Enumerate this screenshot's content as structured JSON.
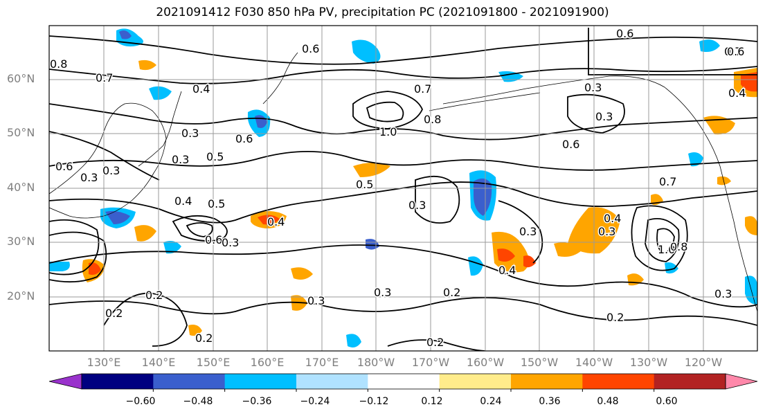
{
  "title": "2021091412 F030 850 hPa PV, precipitation PC (2021091800 - 2021091900)",
  "map": {
    "region": "North Pacific",
    "lat_labels": [
      "60°N",
      "50°N",
      "40°N",
      "30°N",
      "20°N"
    ],
    "lon_labels": [
      "130°E",
      "140°E",
      "150°E",
      "160°E",
      "170°E",
      "180°W",
      "170°W",
      "160°W",
      "150°W",
      "140°W",
      "130°W",
      "120°W"
    ],
    "contour_labels": [
      "0.8",
      "0.7",
      "0.6",
      "0.4",
      "0.3",
      "0.5",
      "0.6",
      "0.3",
      "0.4",
      "0.5",
      "0.3",
      "0.4",
      "0.6",
      "0.3",
      "0.2",
      "0.2",
      "0.2",
      "0.3",
      "0.7",
      "1.0",
      "0.8",
      "0.5",
      "0.3",
      "0.3",
      "0.4",
      "0.3",
      "0.2",
      "0.3",
      "0.3",
      "0.2",
      "0.6",
      "0.4",
      "0.3",
      "0.6",
      "0.7",
      "1.0",
      "0.8",
      "0.3",
      "0.4",
      "0.6",
      "0.6",
      "0.2",
      "0.3",
      "0.7"
    ],
    "colors": {
      "grid": "#999999",
      "contour": "#000000",
      "coast": "#000000"
    }
  },
  "colorbar": {
    "ticks": [
      "−0.60",
      "−0.48",
      "−0.36",
      "−0.24",
      "−0.12",
      "0.12",
      "0.24",
      "0.36",
      "0.48",
      "0.60"
    ],
    "colors": [
      "#9932cc",
      "#000080",
      "#3a5fcd",
      "#00bfff",
      "#b0e2ff",
      "#ffffff",
      "#ffec8b",
      "#ffa500",
      "#ff4500",
      "#b22222",
      "#ff88aa"
    ]
  }
}
